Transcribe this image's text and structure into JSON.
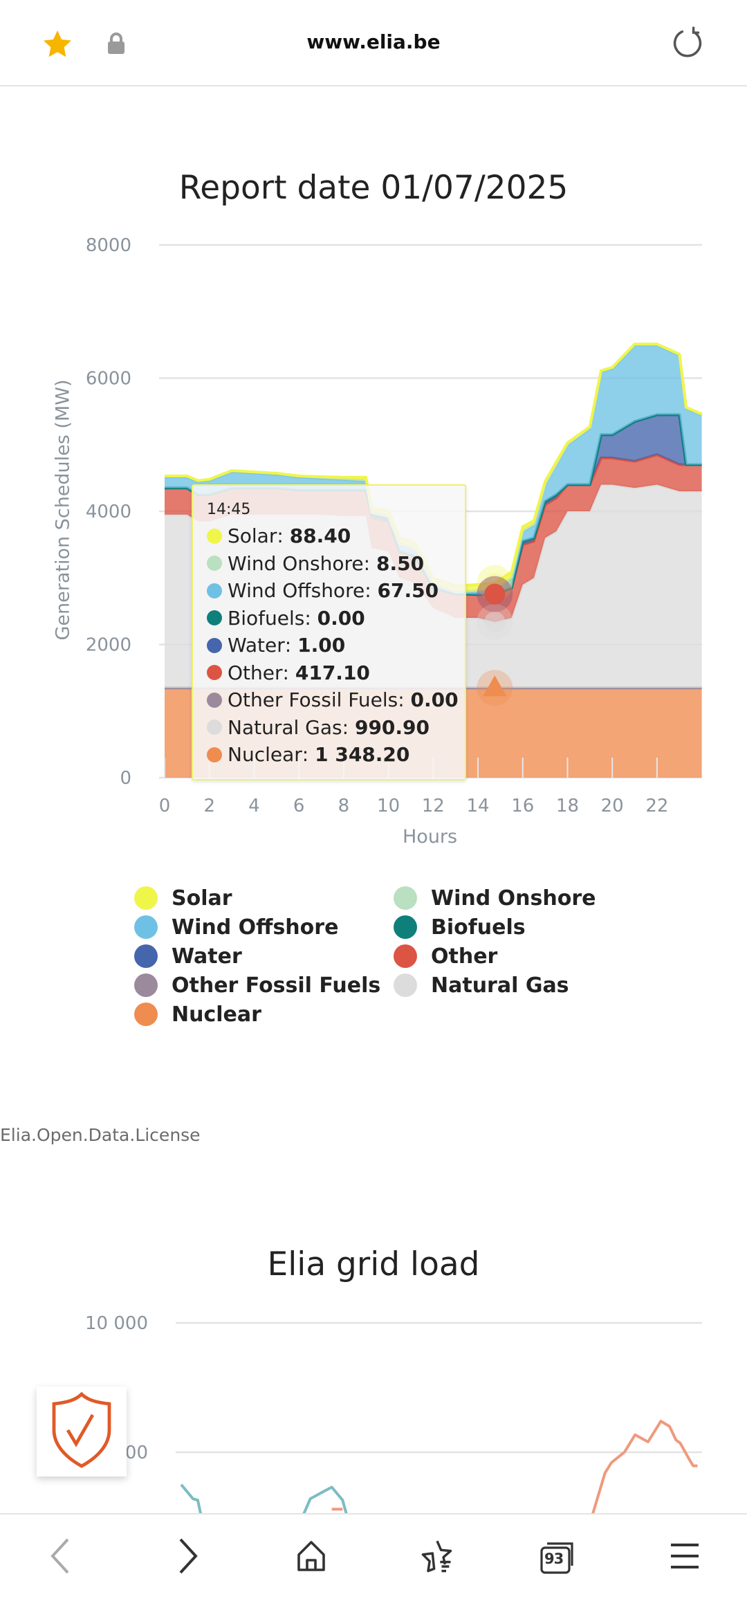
{
  "browser": {
    "url": "www.elia.be",
    "star_color": "#f7b500",
    "icons": [
      "star-icon",
      "lock-icon",
      "reload-icon"
    ]
  },
  "report_title": "Report date 01/07/2025",
  "chart_data": [
    {
      "type": "area",
      "stacked": true,
      "title": "Report date 01/07/2025",
      "xlabel": "Hours",
      "ylabel": "Generation Schedules (MW)",
      "xlim": [
        0,
        24
      ],
      "ylim": [
        0,
        8000
      ],
      "x_ticks": [
        "0",
        "2",
        "4",
        "6",
        "8",
        "10",
        "12",
        "14",
        "16",
        "18",
        "20",
        "22"
      ],
      "y_ticks": [
        "0",
        "2000",
        "4000",
        "6000",
        "8000"
      ],
      "grid": true,
      "legend_position": "bottom",
      "x": [
        0,
        1,
        1.5,
        2,
        3,
        4,
        5,
        6,
        7,
        8,
        9,
        9.25,
        10,
        10.5,
        11,
        11.25,
        12,
        13,
        14,
        14.75,
        15.5,
        16,
        16.5,
        17,
        17.5,
        18,
        19,
        19.5,
        20,
        21,
        22,
        23,
        23.3,
        24
      ],
      "series": [
        {
          "name": "Nuclear",
          "color": "#ef8c4f",
          "values": [
            1348,
            1348,
            1348,
            1348,
            1348,
            1348,
            1348,
            1348,
            1348,
            1348,
            1348,
            1348,
            1348,
            1348,
            1348,
            1348,
            1348,
            1348,
            1348,
            1348.2,
            1348,
            1348,
            1348,
            1348,
            1348,
            1348,
            1348,
            1348,
            1348,
            1348,
            1348,
            1348,
            1348,
            1348
          ]
        },
        {
          "name": "Other Fossil Fuels",
          "color": "#9b8a9b",
          "values": [
            0,
            0,
            0,
            0,
            0,
            0,
            0,
            0,
            0,
            0,
            0,
            0,
            0,
            0,
            0,
            0,
            0,
            0,
            0,
            0,
            0,
            0,
            0,
            0,
            0,
            0,
            0,
            0,
            0,
            0,
            0,
            0,
            0,
            0
          ]
        },
        {
          "name": "Natural Gas",
          "color": "#dcdcdc",
          "values": [
            2602,
            2602,
            2502,
            2502,
            2602,
            2602,
            2602,
            2602,
            2602,
            2582,
            2582,
            2102,
            2052,
            1652,
            1602,
            1552,
            1202,
            1052,
            1052,
            990.9,
            1052,
            1552,
            1652,
            2252,
            2352,
            2652,
            2652,
            3052,
            3052,
            3002,
            3052,
            2952,
            2952,
            2952
          ]
        },
        {
          "name": "Other",
          "color": "#dc5444",
          "values": [
            400,
            400,
            400,
            400,
            400,
            400,
            400,
            370,
            370,
            390,
            390,
            450,
            450,
            400,
            400,
            400,
            300,
            360,
            350,
            417.1,
            450,
            600,
            550,
            500,
            500,
            400,
            400,
            400,
            400,
            400,
            450,
            400,
            400,
            400
          ]
        },
        {
          "name": "Water",
          "color": "#4565ad",
          "values": [
            1,
            1,
            1,
            1,
            1,
            1,
            1,
            1,
            1,
            1,
            1,
            50,
            50,
            1,
            1,
            1,
            1,
            1,
            1,
            1,
            1,
            50,
            50,
            50,
            50,
            1,
            1,
            350,
            350,
            600,
            600,
            750,
            1,
            1
          ]
        },
        {
          "name": "Biofuels",
          "color": "#0f7f7a",
          "values": [
            0,
            0,
            0,
            0,
            0,
            0,
            0,
            0,
            0,
            0,
            0,
            0,
            0,
            0,
            0,
            0,
            0,
            0,
            0,
            0,
            0,
            0,
            0,
            0,
            0,
            0,
            0,
            0,
            0,
            0,
            0,
            0,
            0,
            0
          ]
        },
        {
          "name": "Wind Offshore",
          "color": "#6ec1e4",
          "values": [
            169,
            169,
            199,
            219,
            249,
            229,
            209,
            199,
            179,
            159,
            139,
            30,
            20,
            99,
            99,
            99,
            49,
            19,
            49,
            67.5,
            149,
            150,
            200,
            250,
            450,
            599,
            849,
            950,
            1000,
            1150,
            1050,
            900,
            849,
            749
          ]
        },
        {
          "name": "Wind Onshore",
          "color": "#b9e0c0",
          "values": [
            10,
            10,
            10,
            10,
            10,
            10,
            10,
            10,
            10,
            10,
            10,
            10,
            10,
            10,
            10,
            10,
            10,
            10,
            10,
            8.5,
            10,
            10,
            10,
            10,
            10,
            10,
            10,
            10,
            10,
            10,
            10,
            10,
            10,
            10
          ]
        },
        {
          "name": "Solar",
          "color": "#f0f54a",
          "values": [
            0,
            0,
            0,
            0,
            0,
            0,
            0,
            0,
            10,
            20,
            40,
            60,
            80,
            90,
            90,
            90,
            90,
            90,
            90,
            88.4,
            80,
            60,
            50,
            40,
            30,
            20,
            10,
            0,
            0,
            0,
            0,
            0,
            0,
            0
          ]
        }
      ],
      "tooltip": {
        "time": "14:45",
        "rows": [
          {
            "label": "Solar",
            "value": "88.40",
            "color": "#f0f54a"
          },
          {
            "label": "Wind Onshore",
            "value": "8.50",
            "color": "#b9e0c0"
          },
          {
            "label": "Wind Offshore",
            "value": "67.50",
            "color": "#6ec1e4"
          },
          {
            "label": "Biofuels",
            "value": "0.00",
            "color": "#0f7f7a"
          },
          {
            "label": "Water",
            "value": "1.00",
            "color": "#4565ad"
          },
          {
            "label": "Other",
            "value": "417.10",
            "color": "#dc5444"
          },
          {
            "label": "Other Fossil Fuels",
            "value": "0.00",
            "color": "#9b8a9b"
          },
          {
            "label": "Natural Gas",
            "value": "990.90",
            "color": "#dcdcdc"
          },
          {
            "label": "Nuclear",
            "value": "1 348.20",
            "color": "#ef8c4f"
          }
        ]
      }
    },
    {
      "type": "line",
      "title": "Elia grid load",
      "y_ticks": [
        "10 000",
        "8 000"
      ],
      "series": [
        {
          "color": "#7bbcc4",
          "segments": [
            {
              "x": [
                0,
                0.55,
                0.77,
                1.0
              ],
              "y": [
                7500,
                7280,
                7260,
                6900
              ]
            },
            {
              "x": [
                5.0,
                5.7,
                6.0,
                6.6,
                7.0,
                7.5,
                7.8
              ],
              "y": [
                6900,
                7050,
                7280,
                7390,
                7460,
                7260,
                6900
              ]
            }
          ]
        },
        {
          "color": "#ee9a7c",
          "segments": [
            {
              "x": [
                7.0,
                7.5
              ],
              "y": [
                7120,
                7120
              ]
            },
            {
              "x": [
                19.0,
                19.7,
                20.0,
                20.6,
                21.1,
                21.7,
                22.3,
                22.7,
                23.0,
                23.2,
                23.6,
                23.8,
                24
              ],
              "y": [
                6900,
                7680,
                7840,
                8000,
                8270,
                8160,
                8480,
                8400,
                8190,
                8140,
                7900,
                7790,
                7790
              ]
            }
          ]
        }
      ]
    }
  ],
  "license": "Elia.Open.Data.License",
  "grid_load_title": "Elia grid load",
  "bottom_nav": {
    "tabs_count": "93",
    "items": [
      "back",
      "forward",
      "home",
      "bookmarks",
      "tabs",
      "menu"
    ]
  }
}
